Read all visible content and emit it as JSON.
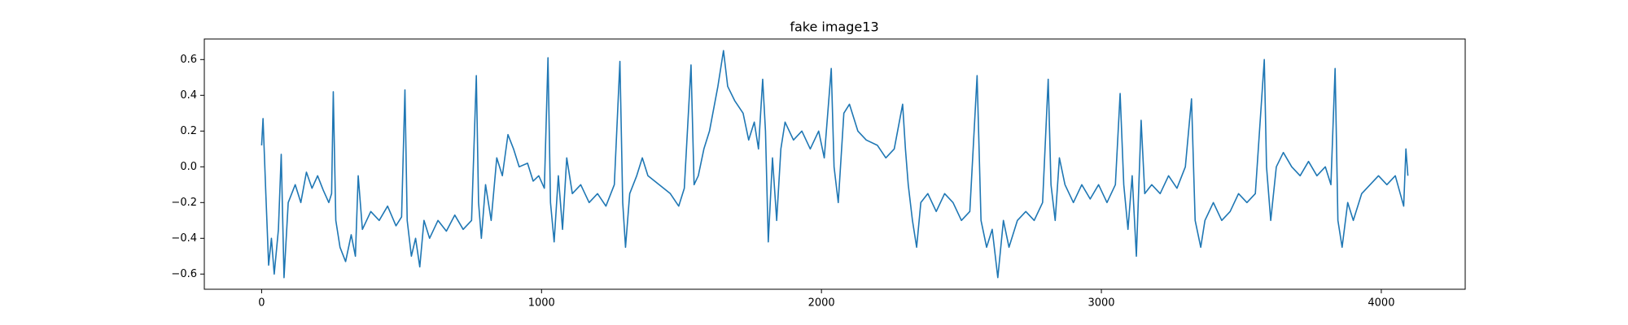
{
  "chart_data": {
    "type": "line",
    "title": "fake image13",
    "color": "#1f77b4",
    "xlim": [
      -204.75,
      4299.75
    ],
    "ylim": [
      -0.685,
      0.715
    ],
    "xticks": [
      0,
      1000,
      2000,
      3000,
      4000
    ],
    "yticks": [
      {
        "value": -0.6,
        "label": "−0.6"
      },
      {
        "value": -0.4,
        "label": "−0.4"
      },
      {
        "value": -0.2,
        "label": "−0.2"
      },
      {
        "value": 0,
        "label": "0.0"
      },
      0.2,
      0.4,
      0.6
    ],
    "x": [
      0,
      5,
      15,
      25,
      35,
      45,
      60,
      70,
      80,
      95,
      120,
      140,
      160,
      180,
      200,
      220,
      240,
      250,
      256,
      265,
      280,
      300,
      320,
      335,
      345,
      360,
      390,
      420,
      450,
      480,
      500,
      512,
      520,
      535,
      550,
      565,
      580,
      600,
      630,
      660,
      690,
      720,
      750,
      767,
      775,
      785,
      800,
      820,
      840,
      860,
      880,
      900,
      920,
      950,
      970,
      990,
      1010,
      1023,
      1032,
      1045,
      1060,
      1075,
      1090,
      1110,
      1140,
      1170,
      1200,
      1230,
      1260,
      1280,
      1290,
      1300,
      1315,
      1340,
      1360,
      1380,
      1420,
      1460,
      1490,
      1510,
      1534,
      1545,
      1560,
      1580,
      1600,
      1630,
      1650,
      1665,
      1690,
      1720,
      1740,
      1760,
      1775,
      1790,
      1800,
      1810,
      1825,
      1840,
      1855,
      1870,
      1900,
      1930,
      1960,
      1990,
      2010,
      2035,
      2045,
      2060,
      2080,
      2100,
      2130,
      2160,
      2200,
      2230,
      2260,
      2290,
      2300,
      2310,
      2325,
      2340,
      2355,
      2380,
      2410,
      2440,
      2470,
      2500,
      2530,
      2556,
      2570,
      2590,
      2610,
      2630,
      2650,
      2670,
      2700,
      2730,
      2760,
      2790,
      2810,
      2820,
      2835,
      2850,
      2870,
      2900,
      2930,
      2960,
      2990,
      3020,
      3050,
      3067,
      3080,
      3095,
      3110,
      3125,
      3142,
      3155,
      3180,
      3210,
      3240,
      3270,
      3300,
      3322,
      3335,
      3355,
      3370,
      3400,
      3430,
      3460,
      3490,
      3520,
      3550,
      3582,
      3590,
      3605,
      3625,
      3650,
      3680,
      3710,
      3740,
      3770,
      3800,
      3820,
      3835,
      3845,
      3860,
      3880,
      3900,
      3930,
      3960,
      3990,
      4020,
      4050,
      4080,
      4088,
      4095
    ],
    "values": [
      0.12,
      0.27,
      -0.15,
      -0.55,
      -0.4,
      -0.6,
      -0.35,
      0.07,
      -0.62,
      -0.2,
      -0.1,
      -0.2,
      -0.03,
      -0.12,
      -0.05,
      -0.13,
      -0.2,
      -0.15,
      0.42,
      -0.3,
      -0.45,
      -0.53,
      -0.38,
      -0.5,
      -0.05,
      -0.35,
      -0.25,
      -0.3,
      -0.22,
      -0.33,
      -0.28,
      0.43,
      -0.3,
      -0.5,
      -0.4,
      -0.56,
      -0.3,
      -0.4,
      -0.3,
      -0.36,
      -0.27,
      -0.35,
      -0.3,
      0.51,
      -0.2,
      -0.4,
      -0.1,
      -0.3,
      0.05,
      -0.05,
      0.18,
      0.1,
      0.0,
      0.02,
      -0.08,
      -0.05,
      -0.12,
      0.61,
      -0.2,
      -0.42,
      -0.05,
      -0.35,
      0.05,
      -0.15,
      -0.1,
      -0.2,
      -0.15,
      -0.22,
      -0.1,
      0.59,
      -0.2,
      -0.45,
      -0.15,
      -0.05,
      0.05,
      -0.05,
      -0.1,
      -0.15,
      -0.22,
      -0.12,
      0.57,
      -0.1,
      -0.05,
      0.1,
      0.2,
      0.45,
      0.65,
      0.45,
      0.37,
      0.3,
      0.15,
      0.25,
      0.1,
      0.49,
      0.2,
      -0.42,
      0.05,
      -0.3,
      0.1,
      0.25,
      0.15,
      0.2,
      0.1,
      0.2,
      0.05,
      0.55,
      0.0,
      -0.2,
      0.3,
      0.35,
      0.2,
      0.15,
      0.12,
      0.05,
      0.1,
      0.35,
      0.1,
      -0.1,
      -0.3,
      -0.45,
      -0.2,
      -0.15,
      -0.25,
      -0.15,
      -0.2,
      -0.3,
      -0.25,
      0.51,
      -0.3,
      -0.45,
      -0.35,
      -0.62,
      -0.3,
      -0.45,
      -0.3,
      -0.25,
      -0.3,
      -0.2,
      0.49,
      -0.1,
      -0.3,
      0.05,
      -0.1,
      -0.2,
      -0.1,
      -0.18,
      -0.1,
      -0.2,
      -0.1,
      0.41,
      -0.1,
      -0.35,
      -0.05,
      -0.5,
      0.26,
      -0.15,
      -0.1,
      -0.15,
      -0.05,
      -0.12,
      0.0,
      0.38,
      -0.3,
      -0.45,
      -0.3,
      -0.2,
      -0.3,
      -0.25,
      -0.15,
      -0.2,
      -0.15,
      0.6,
      0.0,
      -0.3,
      0.0,
      0.08,
      0.0,
      -0.05,
      0.03,
      -0.05,
      0.0,
      -0.1,
      0.55,
      -0.3,
      -0.45,
      -0.2,
      -0.3,
      -0.15,
      -0.1,
      -0.05,
      -0.1,
      -0.05,
      -0.22,
      0.1,
      -0.05
    ]
  }
}
